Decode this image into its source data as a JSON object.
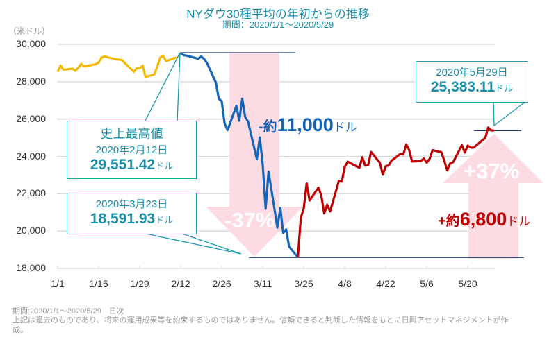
{
  "header": {
    "title": "NYダウ30種平均の年初からの推移",
    "subtitle": "期間：2020/1/1～2020/5/29",
    "unit": "（米ドル）"
  },
  "callouts": {
    "peak": {
      "label": "史上最高値",
      "date": "2020年2月12日",
      "value": "29,551.42",
      "unit": "ドル"
    },
    "low": {
      "date": "2020年3月23日",
      "value": "18,591.93",
      "unit": "ドル"
    },
    "latest": {
      "date": "2020年5月29日",
      "value": "25,383.11",
      "unit": "ドル"
    }
  },
  "annotations": {
    "drop": {
      "pct": "-37%",
      "prefix": "-約",
      "amount": "11,000",
      "unit": "ドル"
    },
    "rise": {
      "pct": "+37%",
      "prefix": "+約",
      "amount": "6,800",
      "unit": "ドル"
    }
  },
  "footer": {
    "period": "期間:2020/1/1～2020/5/29　日次",
    "disclaimer": "上記は過去のものであり、将来の運用成果等を約束するものではありません。信頼できると判断した情報をもとに日興アセットマネジメントが作成。"
  },
  "colors": {
    "pre_peak": "#f5b800",
    "decline": "#1565b8",
    "recovery": "#c00000",
    "accent": "#1a8fa8",
    "arrow": "#fcdce2"
  },
  "chart_data": {
    "type": "line",
    "title": "NYダウ30種平均の年初からの推移",
    "ylabel": "（米ドル）",
    "ylim": [
      18000,
      30000
    ],
    "yticks": [
      "30,000",
      "28,000",
      "26,000",
      "24,000",
      "22,000",
      "20,000",
      "18,000"
    ],
    "xticks": [
      "1/1",
      "1/15",
      "1/29",
      "2/12",
      "2/26",
      "3/11",
      "3/25",
      "4/8",
      "4/22",
      "5/6",
      "5/20"
    ],
    "grid": true,
    "x": [
      "1/1",
      "1/2",
      "1/3",
      "1/6",
      "1/7",
      "1/8",
      "1/9",
      "1/10",
      "1/13",
      "1/14",
      "1/15",
      "1/16",
      "1/17",
      "1/21",
      "1/22",
      "1/23",
      "1/24",
      "1/27",
      "1/28",
      "1/29",
      "1/30",
      "1/31",
      "2/3",
      "2/4",
      "2/5",
      "2/6",
      "2/7",
      "2/10",
      "2/11",
      "2/12",
      "2/13",
      "2/14",
      "2/18",
      "2/19",
      "2/20",
      "2/21",
      "2/24",
      "2/25",
      "2/26",
      "2/27",
      "2/28",
      "3/2",
      "3/3",
      "3/4",
      "3/5",
      "3/6",
      "3/9",
      "3/10",
      "3/11",
      "3/12",
      "3/13",
      "3/16",
      "3/17",
      "3/18",
      "3/19",
      "3/20",
      "3/23",
      "3/24",
      "3/25",
      "3/26",
      "3/27",
      "3/30",
      "3/31",
      "4/1",
      "4/2",
      "4/3",
      "4/6",
      "4/7",
      "4/8",
      "4/9",
      "4/13",
      "4/14",
      "4/15",
      "4/16",
      "4/17",
      "4/20",
      "4/21",
      "4/22",
      "4/23",
      "4/24",
      "4/27",
      "4/28",
      "4/29",
      "4/30",
      "5/1",
      "5/4",
      "5/5",
      "5/6",
      "5/7",
      "5/8",
      "5/11",
      "5/12",
      "5/13",
      "5/14",
      "5/15",
      "5/18",
      "5/19",
      "5/20",
      "5/21",
      "5/22",
      "5/26",
      "5/27",
      "5/28",
      "5/29"
    ],
    "y": [
      28538,
      28869,
      28635,
      28703,
      28583,
      28745,
      28957,
      28824,
      28908,
      28940,
      29030,
      29298,
      29348,
      29196,
      29186,
      29160,
      28990,
      28535,
      28723,
      28734,
      28860,
      28256,
      28400,
      28808,
      29291,
      29380,
      29103,
      29277,
      29276,
      29551,
      29424,
      29398,
      29232,
      29348,
      29219,
      28992,
      27961,
      27081,
      26957,
      25766,
      25409,
      26703,
      25917,
      27091,
      26121,
      25865,
      23851,
      25018,
      23553,
      21200,
      23185,
      20189,
      21237,
      19899,
      20087,
      19174,
      18592,
      20704,
      21200,
      22552,
      21637,
      22328,
      21917,
      20943,
      21413,
      21053,
      22680,
      22654,
      23434,
      23719,
      23390,
      23950,
      23505,
      23538,
      24242,
      23650,
      23019,
      23475,
      23515,
      23775,
      24134,
      24101,
      24634,
      24346,
      23724,
      23750,
      23883,
      23665,
      23876,
      24331,
      24222,
      23765,
      23248,
      23625,
      23685,
      24597,
      24207,
      24576,
      24474,
      24465,
      24995,
      25548,
      25401,
      25383
    ],
    "segments": [
      {
        "from": "1/1",
        "to": "2/12",
        "color": "#f5b800"
      },
      {
        "from": "2/12",
        "to": "3/23",
        "color": "#1565b8"
      },
      {
        "from": "3/23",
        "to": "5/29",
        "color": "#c00000"
      }
    ]
  }
}
